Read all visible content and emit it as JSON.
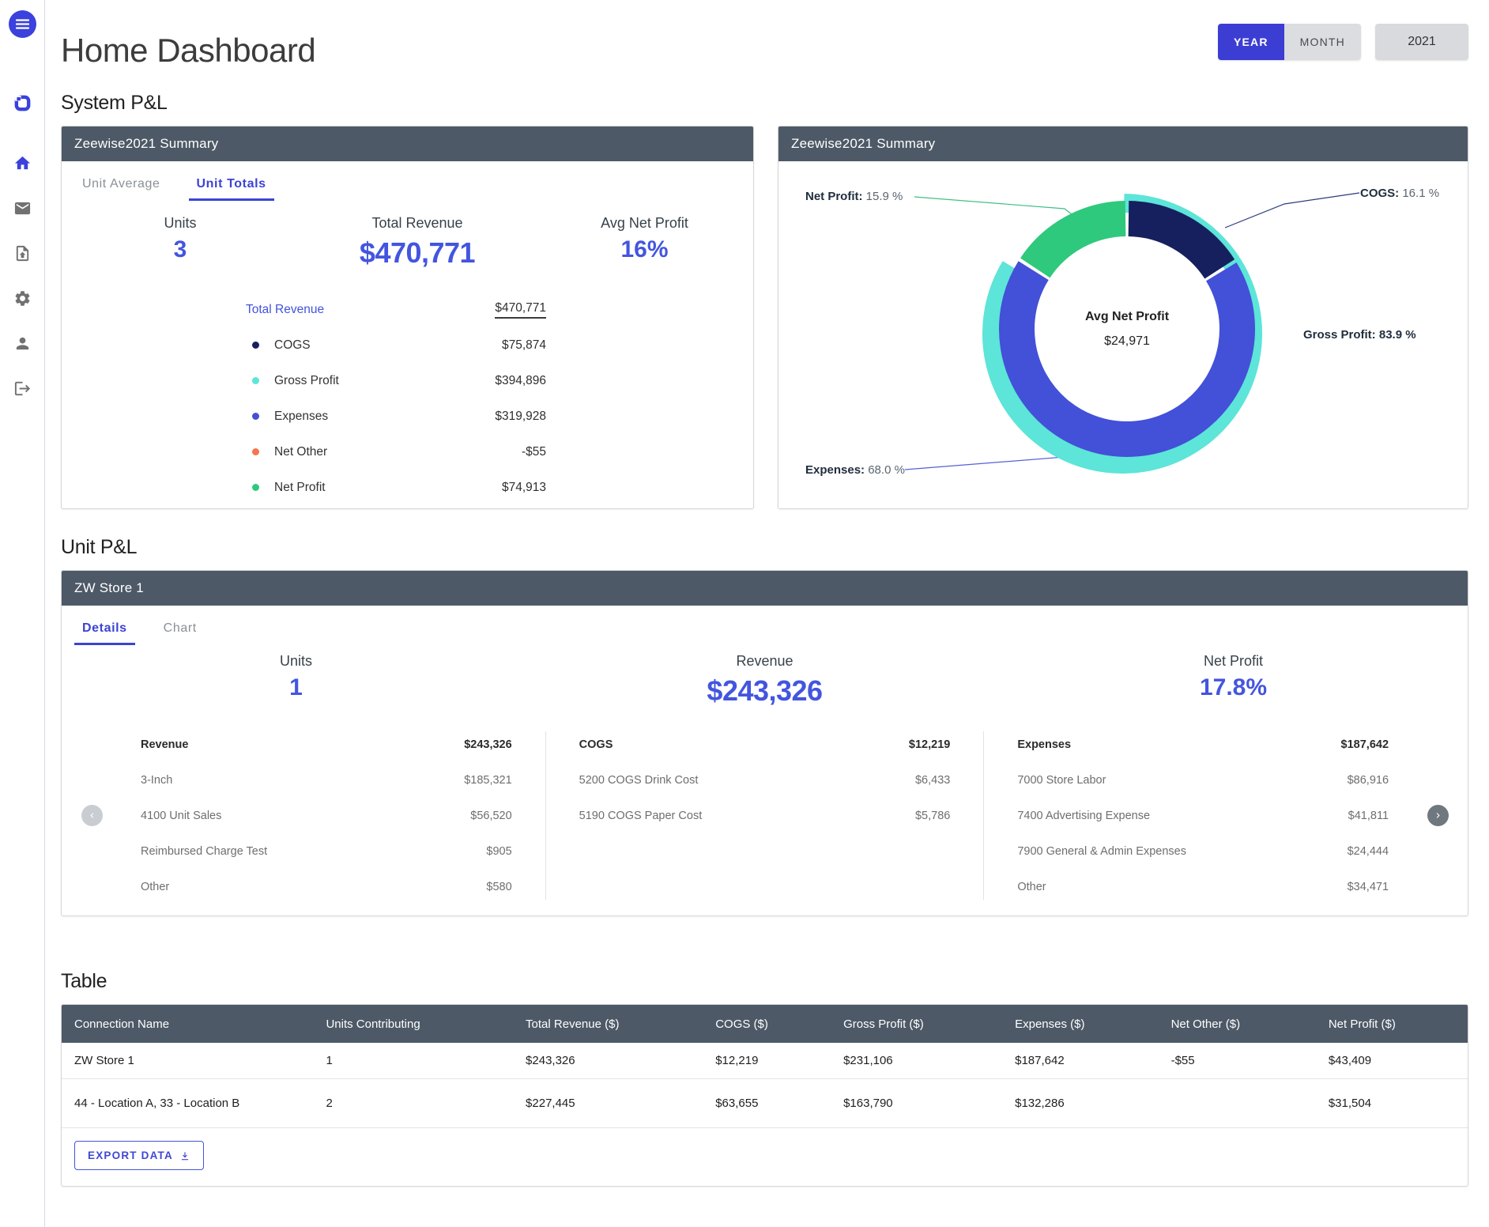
{
  "colors": {
    "accent": "#3c43d6",
    "slate_header": "#4d5967",
    "chart_blue": "#4350d8",
    "chart_teal": "#5ce5d8",
    "chart_green": "#2ec97d",
    "chart_navy": "#16205f",
    "net_other_orange": "#f4764f"
  },
  "header": {
    "title": "Home Dashboard"
  },
  "controls": {
    "year_tab": "YEAR",
    "month_tab": "MONTH",
    "selected_period": "YEAR",
    "year_value": "2021"
  },
  "system_pl": {
    "heading": "System P&L",
    "summary_card": {
      "title": "Zeewise2021 Summary",
      "tabs": {
        "average": "Unit Average",
        "totals": "Unit Totals",
        "active": "Unit Totals"
      },
      "stats": [
        {
          "label": "Units",
          "value": "3"
        },
        {
          "label": "Total Revenue",
          "value": "$470,771"
        },
        {
          "label": "Avg Net Profit",
          "value": "16%"
        }
      ],
      "breakdown": [
        {
          "label": "Total Revenue",
          "value": "$470,771",
          "color": ""
        },
        {
          "label": "COGS",
          "value": "$75,874",
          "color": "#16205f"
        },
        {
          "label": "Gross Profit",
          "value": "$394,896",
          "color": "#5ce5d8"
        },
        {
          "label": "Expenses",
          "value": "$319,928",
          "color": "#4350d8"
        },
        {
          "label": "Net Other",
          "value": "-$55",
          "color": "#f4764f"
        },
        {
          "label": "Net Profit",
          "value": "$74,913",
          "color": "#2ec97d"
        }
      ]
    },
    "chart_card": {
      "title": "Zeewise2021 Summary"
    }
  },
  "chart_data": {
    "type": "pie",
    "variant": "two-ring-donut",
    "title": "Zeewise2021 Summary",
    "center": {
      "label": "Avg Net Profit",
      "value": "$24,971"
    },
    "inner_ring": [
      {
        "name": "COGS",
        "pct": 16.1,
        "color": "#16205f"
      },
      {
        "name": "Expenses",
        "pct": 68.0,
        "color": "#4350d8"
      },
      {
        "name": "Net Profit",
        "pct": 15.9,
        "color": "#2ec97d"
      }
    ],
    "outer_ring": [
      {
        "name": "Gross Profit",
        "pct": 83.9,
        "color": "#5ce5d8"
      }
    ],
    "labels": [
      {
        "name": "Net Profit:",
        "value": "15.9 %"
      },
      {
        "name": "COGS:",
        "value": "16.1 %"
      },
      {
        "name": "Gross Profit:",
        "value": "83.9 %"
      },
      {
        "name": "Expenses:",
        "value": "68.0 %"
      }
    ],
    "legend_position": "callout-labels"
  },
  "unit_pl": {
    "heading": "Unit P&L",
    "card": {
      "title": "ZW Store 1",
      "tabs": {
        "details": "Details",
        "chart": "Chart",
        "active": "Details"
      },
      "stats": [
        {
          "label": "Units",
          "value": "1"
        },
        {
          "label": "Revenue",
          "value": "$243,326"
        },
        {
          "label": "Net Profit",
          "value": "17.8%"
        }
      ],
      "columns": [
        {
          "header": {
            "label": "Revenue",
            "value": "$243,326"
          },
          "items": [
            [
              "3-Inch",
              "$185,321"
            ],
            [
              "4100 Unit Sales",
              "$56,520"
            ],
            [
              "Reimbursed Charge Test",
              "$905"
            ],
            [
              "Other",
              "$580"
            ]
          ]
        },
        {
          "header": {
            "label": "COGS",
            "value": "$12,219"
          },
          "items": [
            [
              "5200 COGS Drink Cost",
              "$6,433"
            ],
            [
              "5190 COGS Paper Cost",
              "$5,786"
            ]
          ]
        },
        {
          "header": {
            "label": "Expenses",
            "value": "$187,642"
          },
          "items": [
            [
              "7000 Store Labor",
              "$86,916"
            ],
            [
              "7400 Advertising Expense",
              "$41,811"
            ],
            [
              "7900 General & Admin Expenses",
              "$24,444"
            ],
            [
              "Other",
              "$34,471"
            ]
          ]
        }
      ]
    }
  },
  "table_section": {
    "heading": "Table",
    "headers": [
      "Connection Name",
      "Units Contributing",
      "Total Revenue ($)",
      "COGS ($)",
      "Gross Profit ($)",
      "Expenses ($)",
      "Net Other ($)",
      "Net Profit ($)"
    ],
    "rows": [
      [
        "ZW Store 1",
        "1",
        "$243,326",
        "$12,219",
        "$231,106",
        "$187,642",
        "-$55",
        "$43,409"
      ],
      [
        "44 - Location A, 33 - Location B",
        "2",
        "$227,445",
        "$63,655",
        "$163,790",
        "$132,286",
        "",
        "$31,504"
      ]
    ],
    "export_label": "EXPORT DATA"
  }
}
